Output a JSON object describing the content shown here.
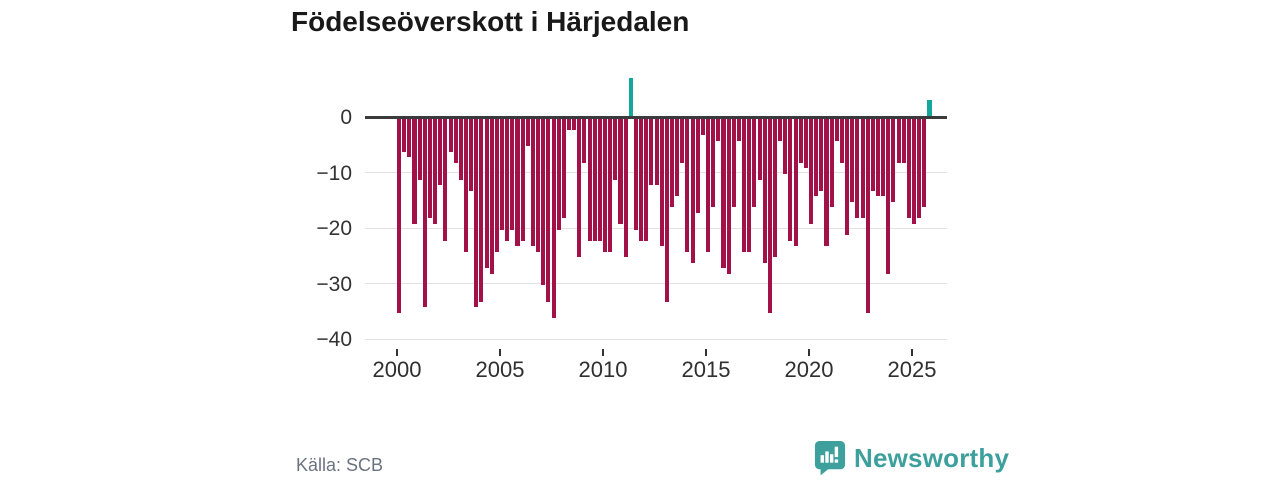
{
  "title": "Födelseöverskott i Härjedalen",
  "source": {
    "label": "Källa: SCB"
  },
  "branding": {
    "name": "Newsworthy",
    "icon": "bar-chart-speech-bubble-icon"
  },
  "colors": {
    "negative_bar": "#a21249",
    "positive_bar": "#14a79e",
    "axis_line": "#3b3b3b",
    "gridline": "#e3e3e3",
    "brand_teal": "#3da09c",
    "title_text": "#191919",
    "tick_text": "#333333",
    "source_text": "#6b7280"
  },
  "chart_data": {
    "type": "bar",
    "title": "Födelseöverskott i Härjedalen",
    "xlabel": "",
    "ylabel": "",
    "frequency": "quarterly",
    "x_start_year": 2000,
    "x_tick_labels": [
      "2000",
      "2005",
      "2010",
      "2015",
      "2020",
      "2025"
    ],
    "x_tick_years": [
      2000,
      2005,
      2010,
      2015,
      2020,
      2025
    ],
    "y_tick_labels": [
      "0",
      "−10",
      "−20",
      "−30",
      "−40"
    ],
    "y_ticks": [
      0,
      -10,
      -20,
      -30,
      -40
    ],
    "ylim": [
      -40,
      8
    ],
    "grid": "horizontal",
    "legend": "none",
    "values": [
      -35,
      -6,
      -7,
      -19,
      -11,
      -34,
      -18,
      -19,
      -12,
      -22,
      -6,
      -8,
      -11,
      -24,
      -13,
      -34,
      -33,
      -27,
      -28,
      -24,
      -20,
      -22,
      -20,
      -23,
      -22,
      -5,
      -23,
      -24,
      -30,
      -33,
      -36,
      -20,
      -18,
      -2,
      -2,
      -25,
      -8,
      -22,
      -22,
      -22,
      -24,
      -24,
      -11,
      -19,
      -25,
      7,
      -20,
      -22,
      -22,
      -12,
      -12,
      -23,
      -33,
      -16,
      -14,
      -8,
      -24,
      -26,
      -17,
      -3,
      -24,
      -16,
      -4,
      -27,
      -28,
      -16,
      -4,
      -24,
      -24,
      -16,
      -11,
      -26,
      -35,
      -25,
      -4,
      -10,
      -22,
      -23,
      -8,
      -9,
      -19,
      -14,
      -13,
      -23,
      -16,
      -4,
      -8,
      -21,
      -15,
      -18,
      -18,
      -35,
      -13,
      -14,
      -14,
      -28,
      -15,
      -8,
      -8,
      -18,
      -19,
      -18,
      -16,
      3
    ]
  }
}
